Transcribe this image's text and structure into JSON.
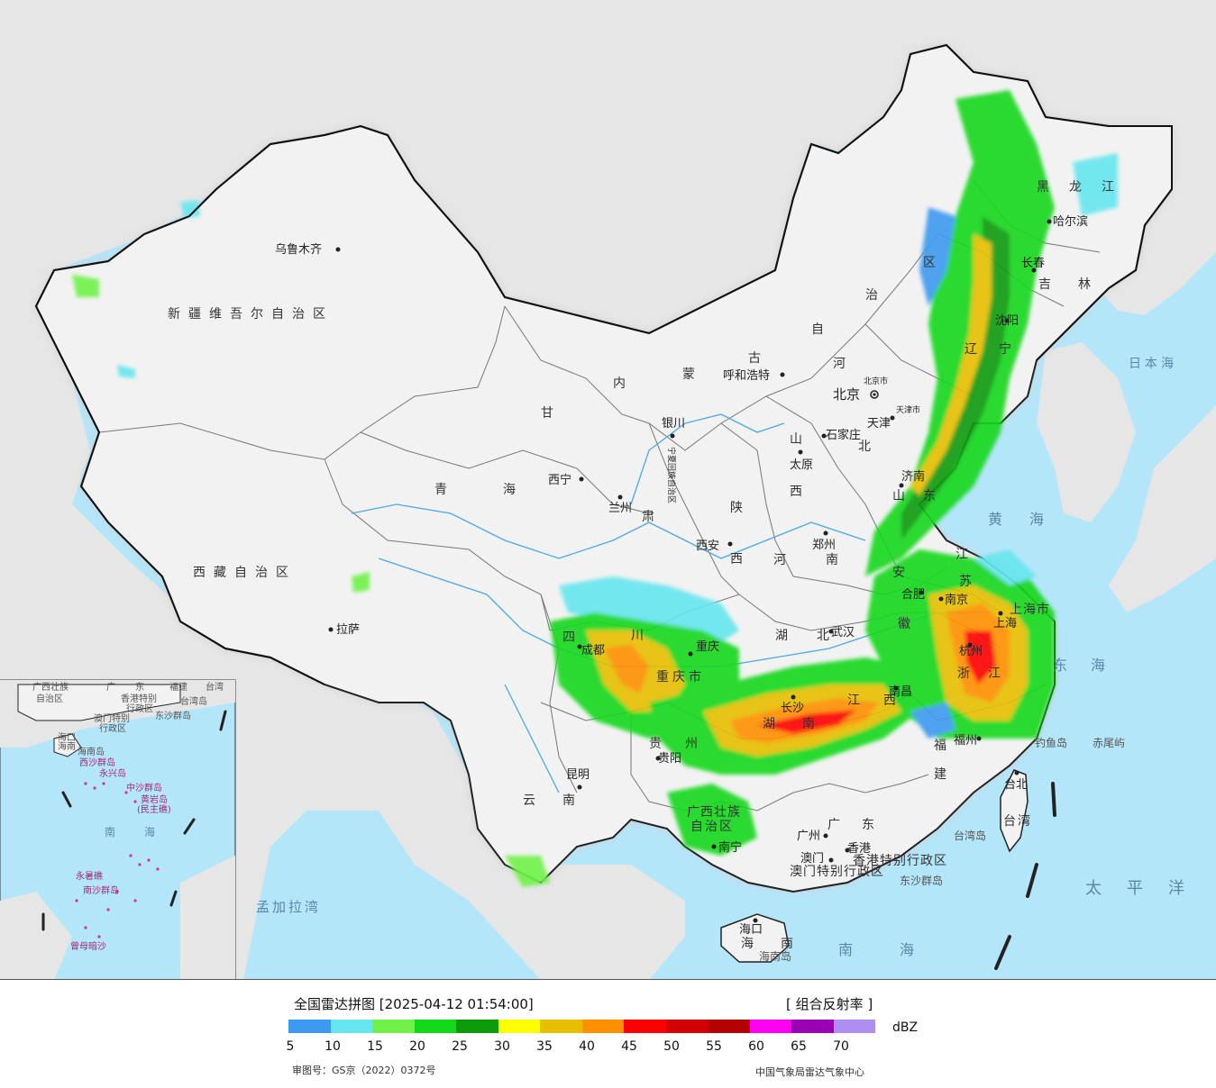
{
  "legend": {
    "title": "全国雷达拼图 [2025-04-12 01:54:00]",
    "product": "[ 组合反射率 ]",
    "unit": "dBZ",
    "review_number": "审图号：GS京（2022）0372号",
    "source": "中国气象局雷达气象中心",
    "ticks": [
      "5",
      "10",
      "15",
      "20",
      "25",
      "30",
      "35",
      "40",
      "45",
      "50",
      "55",
      "60",
      "65",
      "70"
    ],
    "colors": [
      "#3c9af0",
      "#66e6ee",
      "#70f24a",
      "#12d81a",
      "#0a9a0a",
      "#ffff00",
      "#e6c000",
      "#ff9000",
      "#ff0000",
      "#d20000",
      "#b40000",
      "#ff00f0",
      "#9a00b4",
      "#ae8ef0"
    ]
  },
  "map": {
    "colors": {
      "ocean": "#b4e6fa",
      "land": "#f0f0f0",
      "foreign": "#e4e4e4",
      "border": "#222222",
      "river": "#4aa8e8"
    },
    "provinces": [
      {
        "label": "新疆维吾尔自治区"
      },
      {
        "label": "西藏自治区"
      },
      {
        "label": "青海"
      },
      {
        "label": "甘"
      },
      {
        "label": "肃"
      },
      {
        "label": "内"
      },
      {
        "label": "蒙"
      },
      {
        "label": "古"
      },
      {
        "label": "自"
      },
      {
        "label": "治"
      },
      {
        "label": "区"
      },
      {
        "label": "黑龙江"
      },
      {
        "label": "吉林"
      },
      {
        "label": "辽"
      },
      {
        "label": "宁"
      },
      {
        "label": "河"
      },
      {
        "label": "北"
      },
      {
        "label": "山"
      },
      {
        "label": "西"
      },
      {
        "label": "陕"
      },
      {
        "label": "西"
      },
      {
        "label": "河南"
      },
      {
        "label": "山东"
      },
      {
        "label": "江"
      },
      {
        "label": "苏"
      },
      {
        "label": "安"
      },
      {
        "label": "徽"
      },
      {
        "label": "湖北"
      },
      {
        "label": "湖南"
      },
      {
        "label": "四"
      },
      {
        "label": "川"
      },
      {
        "label": "重庆市"
      },
      {
        "label": "贵州"
      },
      {
        "label": "云南"
      },
      {
        "label": "广西壮族"
      },
      {
        "label": "自治区"
      },
      {
        "label": "广东"
      },
      {
        "label": "江西"
      },
      {
        "label": "福"
      },
      {
        "label": "建"
      },
      {
        "label": "浙江"
      },
      {
        "label": "上海市"
      },
      {
        "label": "台湾"
      },
      {
        "label": "海南"
      },
      {
        "label": "香港特别行政区"
      },
      {
        "label": "澳门特别行政区"
      },
      {
        "label": "宁夏回族自治区"
      }
    ],
    "cities": [
      {
        "name": "乌鲁木齐"
      },
      {
        "name": "拉萨"
      },
      {
        "name": "西宁"
      },
      {
        "name": "兰州"
      },
      {
        "name": "银川"
      },
      {
        "name": "呼和浩特"
      },
      {
        "name": "北京"
      },
      {
        "name": "北京市"
      },
      {
        "name": "天津"
      },
      {
        "name": "天津市"
      },
      {
        "name": "石家庄"
      },
      {
        "name": "太原"
      },
      {
        "name": "西安"
      },
      {
        "name": "郑州"
      },
      {
        "name": "济南"
      },
      {
        "name": "合肥"
      },
      {
        "name": "南京"
      },
      {
        "name": "上海"
      },
      {
        "name": "杭州"
      },
      {
        "name": "武汉"
      },
      {
        "name": "成都"
      },
      {
        "name": "重庆"
      },
      {
        "name": "长沙"
      },
      {
        "name": "南昌"
      },
      {
        "name": "福州"
      },
      {
        "name": "贵阳"
      },
      {
        "name": "昆明"
      },
      {
        "name": "南宁"
      },
      {
        "name": "广州"
      },
      {
        "name": "澳门"
      },
      {
        "name": "香港"
      },
      {
        "name": "海口"
      },
      {
        "name": "台北"
      },
      {
        "name": "沈阳"
      },
      {
        "name": "长春"
      },
      {
        "name": "哈尔滨"
      }
    ],
    "seas": [
      {
        "name": "日本海"
      },
      {
        "name": "黄海"
      },
      {
        "name": "东海"
      },
      {
        "name": "南海"
      },
      {
        "name": "太平洋"
      },
      {
        "name": "孟加拉湾"
      }
    ],
    "islands": [
      {
        "name": "钓鱼岛"
      },
      {
        "name": "赤尾屿"
      },
      {
        "name": "台湾岛"
      },
      {
        "name": "东沙群岛"
      },
      {
        "name": "海南岛"
      }
    ],
    "inset": {
      "labels": [
        {
          "text": "广西壮族"
        },
        {
          "text": "自治区"
        },
        {
          "text": "广"
        },
        {
          "text": "东"
        },
        {
          "text": "福建"
        },
        {
          "text": "台湾"
        },
        {
          "text": "香港特别"
        },
        {
          "text": "行政区"
        },
        {
          "text": "澳门特别"
        },
        {
          "text": "行政区"
        },
        {
          "text": "台湾岛"
        },
        {
          "text": "东沙群岛"
        },
        {
          "text": "海口"
        },
        {
          "text": "海南"
        },
        {
          "text": "海南岛"
        },
        {
          "text": "西沙群岛"
        },
        {
          "text": "永兴岛"
        },
        {
          "text": "中沙群岛"
        },
        {
          "text": "黄岩岛"
        },
        {
          "text": "(民主礁)"
        },
        {
          "text": "南"
        },
        {
          "text": "海"
        },
        {
          "text": "永暑礁"
        },
        {
          "text": "南沙群岛"
        },
        {
          "text": "曾母暗沙"
        }
      ]
    }
  }
}
